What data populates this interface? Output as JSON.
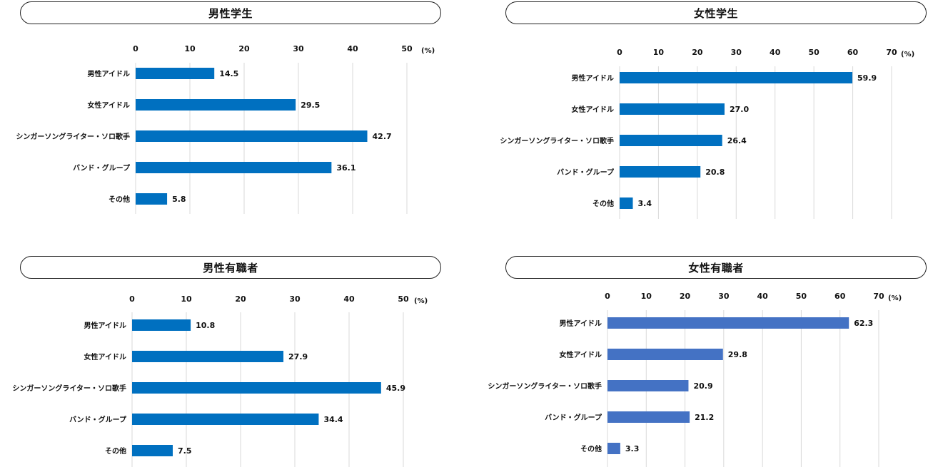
{
  "chart_data": [
    {
      "type": "bar",
      "title": "男性学生",
      "categories": [
        "男性アイドル",
        "女性アイドル",
        "シンガーソングライター・ソロ歌手",
        "バンド・グループ",
        "その他"
      ],
      "values": [
        14.5,
        29.5,
        42.7,
        36.1,
        5.8
      ],
      "value_labels": [
        "14.5",
        "29.5",
        "42.7",
        "36.1",
        "5.8"
      ],
      "xlim": [
        0,
        50
      ],
      "ticks": [
        0,
        10,
        20,
        30,
        40,
        50
      ],
      "unit": "(%)",
      "color": "#0070C0",
      "orientation": "horizontal",
      "grid": true
    },
    {
      "type": "bar",
      "title": "女性学生",
      "categories": [
        "男性アイドル",
        "女性アイドル",
        "シンガーソングライター・ソロ歌手",
        "バンド・グループ",
        "その他"
      ],
      "values": [
        59.9,
        27.0,
        26.4,
        20.8,
        3.4
      ],
      "value_labels": [
        "59.9",
        "27.0",
        "26.4",
        "20.8",
        "3.4"
      ],
      "xlim": [
        0,
        70
      ],
      "ticks": [
        0,
        10,
        20,
        30,
        40,
        50,
        60,
        70
      ],
      "unit": "(%)",
      "color": "#0070C0",
      "orientation": "horizontal",
      "grid": true
    },
    {
      "type": "bar",
      "title": "男性有職者",
      "categories": [
        "男性アイドル",
        "女性アイドル",
        "シンガーソングライター・ソロ歌手",
        "バンド・グループ",
        "その他"
      ],
      "values": [
        10.8,
        27.9,
        45.9,
        34.4,
        7.5
      ],
      "value_labels": [
        "10.8",
        "27.9",
        "45.9",
        "34.4",
        "7.5"
      ],
      "xlim": [
        0,
        50
      ],
      "ticks": [
        0,
        10,
        20,
        30,
        40,
        50
      ],
      "unit": "(%)",
      "color": "#0070C0",
      "orientation": "horizontal",
      "grid": true
    },
    {
      "type": "bar",
      "title": "女性有職者",
      "categories": [
        "男性アイドル",
        "女性アイドル",
        "シンガーソングライター・ソロ歌手",
        "バンド・グループ",
        "その他"
      ],
      "values": [
        62.3,
        29.8,
        20.9,
        21.2,
        3.3
      ],
      "value_labels": [
        "62.3",
        "29.8",
        "20.9",
        "21.2",
        "3.3"
      ],
      "xlim": [
        0,
        70
      ],
      "ticks": [
        0,
        10,
        20,
        30,
        40,
        50,
        60,
        70
      ],
      "unit": "(%)",
      "color": "#4472C4",
      "orientation": "horizontal",
      "grid": true
    }
  ]
}
